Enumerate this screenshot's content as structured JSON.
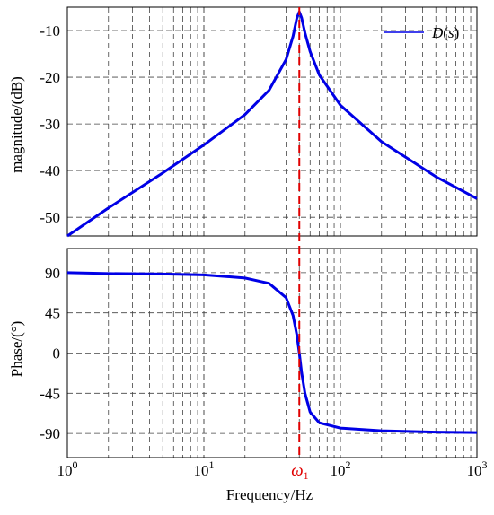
{
  "chart_data": [
    {
      "type": "line",
      "ylabel": "magnitude/(dB)",
      "xscale": "log",
      "xlim": [
        1,
        1000
      ],
      "ylim": [
        -54,
        -5
      ],
      "yticks": [
        -10,
        -20,
        -30,
        -40,
        -50
      ],
      "ytick_labels": [
        "-10",
        "-20",
        "-30",
        "-40",
        "-50"
      ],
      "grid": true,
      "legend": {
        "position": "top-right",
        "entries": [
          "D(s)"
        ]
      },
      "series": [
        {
          "name": "D(s)",
          "color": "#0000e6",
          "x": [
            1,
            2,
            5,
            10,
            20,
            30,
            40,
            45,
            48,
            50,
            52,
            55,
            60,
            70,
            100,
            200,
            500,
            1000
          ],
          "y": [
            -54,
            -48,
            -40.5,
            -34.5,
            -28,
            -22.8,
            -16.2,
            -11.2,
            -7.3,
            -6,
            -7.3,
            -10.5,
            -14.5,
            -19.5,
            -26,
            -33.8,
            -41.3,
            -46
          ]
        }
      ]
    },
    {
      "type": "line",
      "xlabel": "Frequency/Hz",
      "ylabel": "Phase/(°)",
      "xscale": "log",
      "xlim": [
        1,
        1000
      ],
      "ylim": [
        -117,
        117
      ],
      "yticks": [
        90,
        45,
        0,
        -45,
        -90
      ],
      "ytick_labels": [
        "90",
        "45",
        "0",
        "-45",
        "-90"
      ],
      "xticks": [
        1,
        10,
        100,
        1000
      ],
      "xtick_labels": [
        {
          "base": "10",
          "exp": "0"
        },
        {
          "base": "10",
          "exp": "1"
        },
        {
          "base": "10",
          "exp": "2"
        },
        {
          "base": "10",
          "exp": "3"
        }
      ],
      "grid": true,
      "annotations": [
        {
          "text": "ω",
          "subscript": "1",
          "x": 50,
          "color": "#e00000",
          "style": "dashed vertical line"
        }
      ],
      "series": [
        {
          "name": "D(s)",
          "color": "#0000e6",
          "x": [
            1,
            2,
            5,
            10,
            20,
            30,
            40,
            45,
            48,
            50,
            52,
            55,
            60,
            70,
            100,
            200,
            500,
            1000
          ],
          "y": [
            90,
            89,
            88.5,
            87.5,
            84,
            78,
            62,
            42,
            20,
            0,
            -22,
            -45,
            -66,
            -78,
            -84,
            -87,
            -88.5,
            -89
          ]
        }
      ]
    }
  ]
}
